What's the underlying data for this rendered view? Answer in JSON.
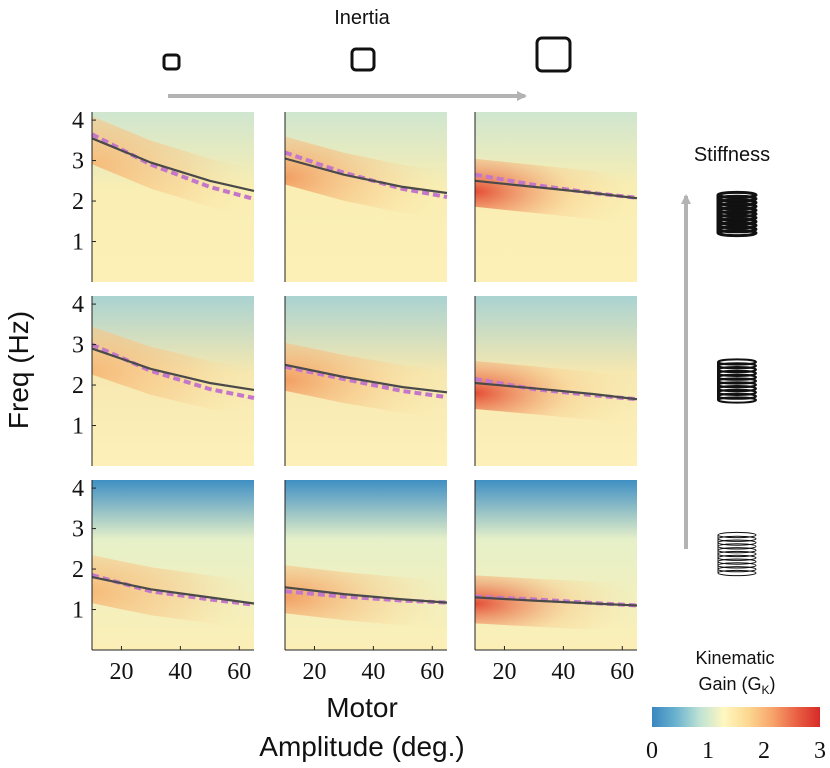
{
  "chart_data": {
    "type": "heatmap",
    "layout": "3x3 small multiples",
    "inertia_label": "Inertia",
    "stiffness_label": "Stiffness",
    "ylabel": "Freq (Hz)",
    "xlabel_line1": "Motor",
    "xlabel_line2": "Amplitude (deg.)",
    "x_range": [
      10,
      65
    ],
    "y_range": [
      0,
      4.2
    ],
    "x_ticks": [
      20,
      40,
      60
    ],
    "y_ticks": [
      1,
      2,
      3,
      4
    ],
    "colorbar": {
      "title_line1": "Kinematic",
      "title_line2": "Gain (G",
      "title_sub": "K",
      "title_close": ")",
      "range": [
        0,
        3
      ],
      "ticks": [
        0,
        1,
        2,
        3
      ],
      "colors": [
        "#3a86c0",
        "#6bb3cf",
        "#bfe3d4",
        "#fff7c0",
        "#fcd890",
        "#f7a56b",
        "#ea6245",
        "#d72a28"
      ]
    },
    "columns": [
      "low inertia",
      "medium inertia",
      "high inertia"
    ],
    "rows": [
      "high stiffness",
      "medium stiffness",
      "low stiffness"
    ],
    "panels": [
      {
        "row": 0,
        "col": 0,
        "solid": {
          "x": [
            10,
            30,
            50,
            65
          ],
          "y": [
            3.55,
            2.95,
            2.5,
            2.25
          ]
        },
        "dashed": {
          "x": [
            10,
            30,
            50,
            65
          ],
          "y": [
            3.65,
            2.9,
            2.35,
            2.05
          ]
        }
      },
      {
        "row": 0,
        "col": 1,
        "solid": {
          "x": [
            10,
            30,
            50,
            65
          ],
          "y": [
            3.05,
            2.65,
            2.35,
            2.2
          ]
        },
        "dashed": {
          "x": [
            10,
            30,
            50,
            65
          ],
          "y": [
            3.2,
            2.7,
            2.3,
            2.1
          ]
        }
      },
      {
        "row": 0,
        "col": 2,
        "solid": {
          "x": [
            10,
            30,
            50,
            65
          ],
          "y": [
            2.5,
            2.35,
            2.2,
            2.07
          ]
        },
        "dashed": {
          "x": [
            10,
            30,
            50,
            65
          ],
          "y": [
            2.65,
            2.4,
            2.2,
            2.08
          ]
        }
      },
      {
        "row": 1,
        "col": 0,
        "solid": {
          "x": [
            10,
            30,
            50,
            65
          ],
          "y": [
            2.9,
            2.4,
            2.05,
            1.88
          ]
        },
        "dashed": {
          "x": [
            10,
            30,
            50,
            65
          ],
          "y": [
            3.0,
            2.35,
            1.9,
            1.68
          ]
        }
      },
      {
        "row": 1,
        "col": 1,
        "solid": {
          "x": [
            10,
            30,
            50,
            65
          ],
          "y": [
            2.5,
            2.2,
            1.95,
            1.82
          ]
        },
        "dashed": {
          "x": [
            10,
            30,
            50,
            65
          ],
          "y": [
            2.45,
            2.15,
            1.85,
            1.7
          ]
        }
      },
      {
        "row": 1,
        "col": 2,
        "solid": {
          "x": [
            10,
            30,
            50,
            65
          ],
          "y": [
            2.05,
            1.92,
            1.78,
            1.65
          ]
        },
        "dashed": {
          "x": [
            10,
            30,
            50,
            65
          ],
          "y": [
            2.15,
            1.9,
            1.75,
            1.65
          ]
        }
      },
      {
        "row": 2,
        "col": 0,
        "solid": {
          "x": [
            10,
            30,
            50,
            65
          ],
          "y": [
            1.8,
            1.5,
            1.3,
            1.15
          ]
        },
        "dashed": {
          "x": [
            10,
            30,
            50,
            65
          ],
          "y": [
            1.85,
            1.45,
            1.25,
            1.12
          ]
        }
      },
      {
        "row": 2,
        "col": 1,
        "solid": {
          "x": [
            10,
            30,
            50,
            65
          ],
          "y": [
            1.55,
            1.38,
            1.25,
            1.17
          ]
        },
        "dashed": {
          "x": [
            10,
            30,
            50,
            65
          ],
          "y": [
            1.45,
            1.32,
            1.22,
            1.17
          ]
        }
      },
      {
        "row": 2,
        "col": 2,
        "solid": {
          "x": [
            10,
            30,
            50,
            65
          ],
          "y": [
            1.3,
            1.22,
            1.15,
            1.1
          ]
        },
        "dashed": {
          "x": [
            10,
            30,
            50,
            65
          ],
          "y": [
            1.32,
            1.25,
            1.16,
            1.1
          ]
        }
      }
    ]
  }
}
